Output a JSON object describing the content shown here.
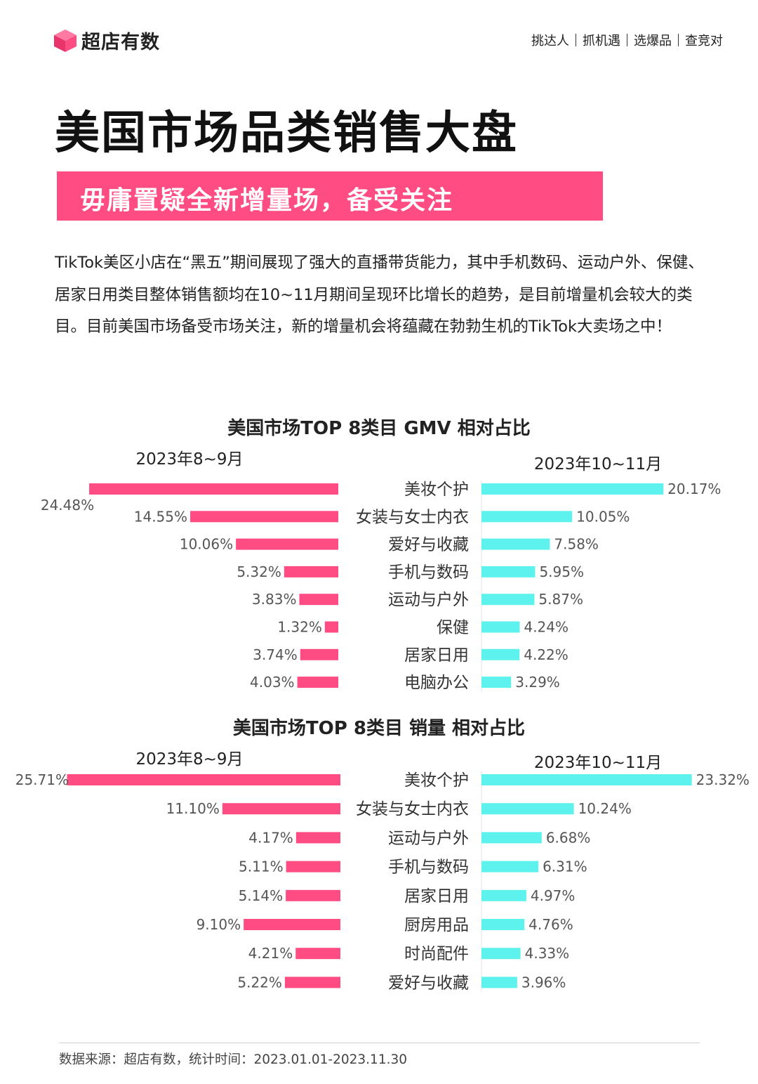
{
  "brand": {
    "name": "超店有数"
  },
  "nav": {
    "items": [
      "挑达人",
      "抓机遇",
      "选爆品",
      "查竞对"
    ]
  },
  "title": "美国市场品类销售大盘",
  "banner": "毋庸置疑全新增量场，备受关注",
  "intro": "TikTok美区小店在“黑五”期间展现了强大的直播带货能力，其中手机数码、运动户外、保健、居家日用类目整体销售额均在10~11月期间呈现环比增长的趋势，是目前增量机会较大的类目。目前美国市场备受市场关注，新的增量机会将蕴藏在勃勃生机的TikTok大卖场之中！",
  "colors": {
    "left": "#ff4d84",
    "right": "#5ef2ef",
    "accent": "#ff4d84"
  },
  "chart_data": [
    {
      "type": "bar",
      "title": "美国市场TOP 8类目 GMV 相对占比",
      "left_label": "2023年8~9月",
      "right_label": "2023年10~11月",
      "series": [
        {
          "name": "2023年8~9月",
          "values": [
            24.48,
            14.55,
            10.06,
            5.32,
            3.83,
            1.32,
            3.74,
            4.03
          ]
        },
        {
          "name": "2023年10~11月",
          "categories": [
            "美妆个护",
            "女装与女士内衣",
            "爱好与收藏",
            "手机与数码",
            "运动与户外",
            "保健",
            "居家日用",
            "电脑办公"
          ],
          "values": [
            20.17,
            10.05,
            7.58,
            5.95,
            5.87,
            4.24,
            4.22,
            3.29
          ]
        }
      ]
    },
    {
      "type": "bar",
      "title": "美国市场TOP 8类目  销量  相对占比",
      "left_label": "2023年8~9月",
      "right_label": "2023年10~11月",
      "series": [
        {
          "name": "2023年8~9月",
          "values": [
            25.71,
            11.1,
            4.17,
            5.11,
            5.14,
            9.1,
            4.21,
            5.22
          ]
        },
        {
          "name": "2023年10~11月",
          "categories": [
            "美妆个护",
            "女装与女士内衣",
            "运动与户外",
            "手机与数码",
            "居家日用",
            "厨房用品",
            "时尚配件",
            "爱好与收藏"
          ],
          "values": [
            23.32,
            10.24,
            6.68,
            6.31,
            4.97,
            4.76,
            4.33,
            3.96
          ]
        }
      ]
    }
  ],
  "footer": "数据来源：超店有数，统计时间：2023.01.01-2023.11.30"
}
